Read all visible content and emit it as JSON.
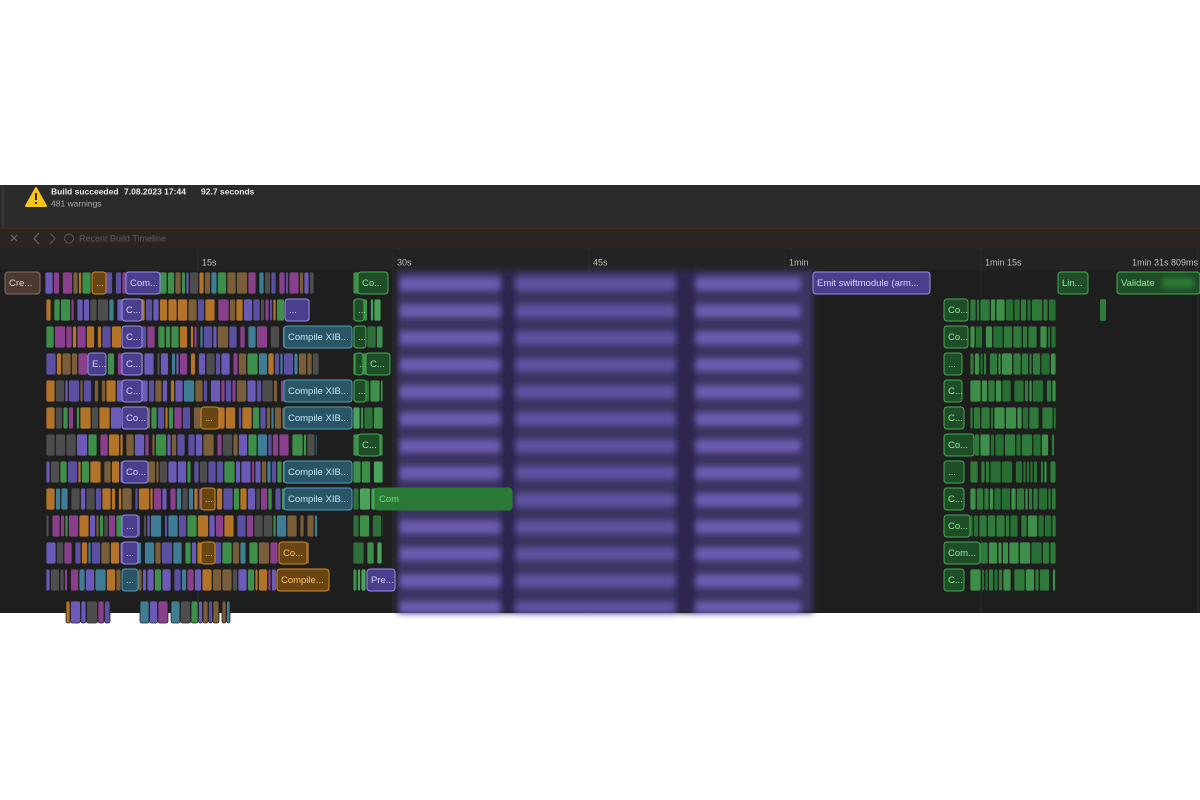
{
  "header": {
    "status": "Build succeeded",
    "date": "7.08.2023 17:44",
    "duration": "92.7 seconds",
    "warnings": "481 warnings"
  },
  "toolbar": {
    "title": "Recent Build Timeline"
  },
  "ruler": [
    "15s",
    "30s",
    "45s",
    "1min",
    "1min 15s",
    "1min 31s 809ms"
  ],
  "rows": [
    [
      "Cre...",
      "...",
      "Com...",
      "Co...",
      "Emit swiftmodule (arm...",
      "Lin...",
      "Validate"
    ],
    [
      "C...",
      "...",
      "...",
      "Co..."
    ],
    [
      "C...",
      "Compile XIB...",
      "...",
      "Co..."
    ],
    [
      "E...",
      "C...",
      "...",
      "C...",
      "..."
    ],
    [
      "C...",
      "Compile XIB...",
      "...",
      "C..."
    ],
    [
      "Co...",
      "...",
      "Compile XIB...",
      "C..."
    ],
    [
      "C...",
      "Co..."
    ],
    [
      "Co...",
      "Compile XIB...",
      "..."
    ],
    [
      "...",
      "Compile XIB...",
      "Com",
      "C..."
    ],
    [
      "...",
      "Co..."
    ],
    [
      "...",
      "...",
      "Co...",
      "Com..."
    ],
    [
      "...",
      "Compile...",
      "Pre...",
      "C..."
    ]
  ]
}
